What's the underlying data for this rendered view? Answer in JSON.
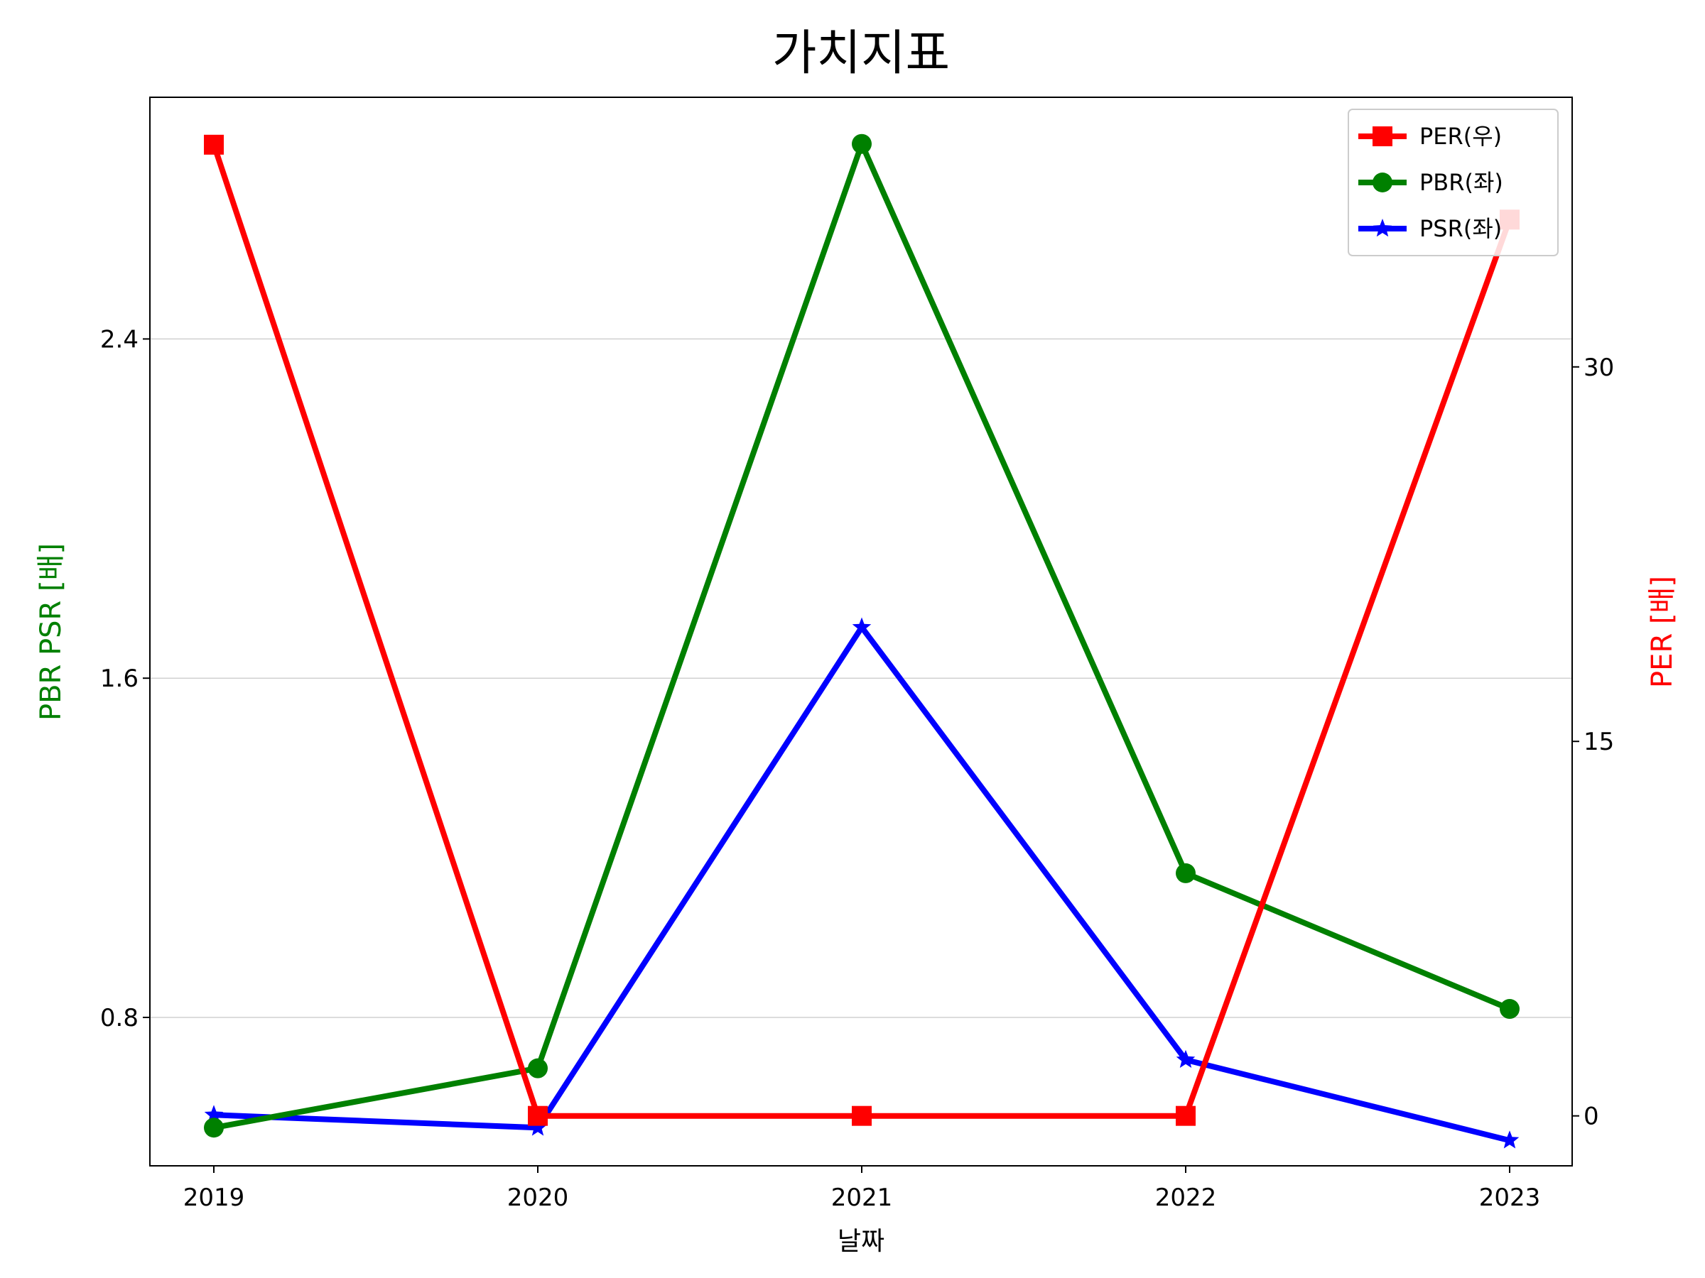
{
  "chart_data": {
    "type": "line",
    "title": "가치지표",
    "xlabel": "날짜",
    "ylabel_left": "PBR PSR [배]",
    "ylabel_right": "PER [배]",
    "ylabel_left_color": "#008000",
    "ylabel_right_color": "#ff0000",
    "categories": [
      "2019",
      "2020",
      "2021",
      "2022",
      "2023"
    ],
    "ylim_left": [
      0.45,
      2.97
    ],
    "ylim_right": [
      -2,
      40.8
    ],
    "yticks_left": [
      0.8,
      1.6,
      2.4
    ],
    "yticks_left_labels": [
      "0.8",
      "1.6",
      "2.4"
    ],
    "yticks_right": [
      0,
      15,
      30
    ],
    "yticks_right_labels": [
      "0",
      "15",
      "30"
    ],
    "grid": "horizontal",
    "legend_position": "top-right",
    "series": [
      {
        "name": "PER(우)",
        "axis": "right",
        "color": "#ff0000",
        "marker": "square",
        "values": [
          38.9,
          0,
          0,
          0,
          35.9
        ]
      },
      {
        "name": "PBR(좌)",
        "axis": "left",
        "color": "#008000",
        "marker": "circle",
        "values": [
          0.54,
          0.68,
          2.86,
          1.14,
          0.82
        ]
      },
      {
        "name": "PSR(좌)",
        "axis": "left",
        "color": "#0000ff",
        "marker": "star",
        "values": [
          0.57,
          0.54,
          1.72,
          0.7,
          0.51
        ]
      }
    ]
  }
}
